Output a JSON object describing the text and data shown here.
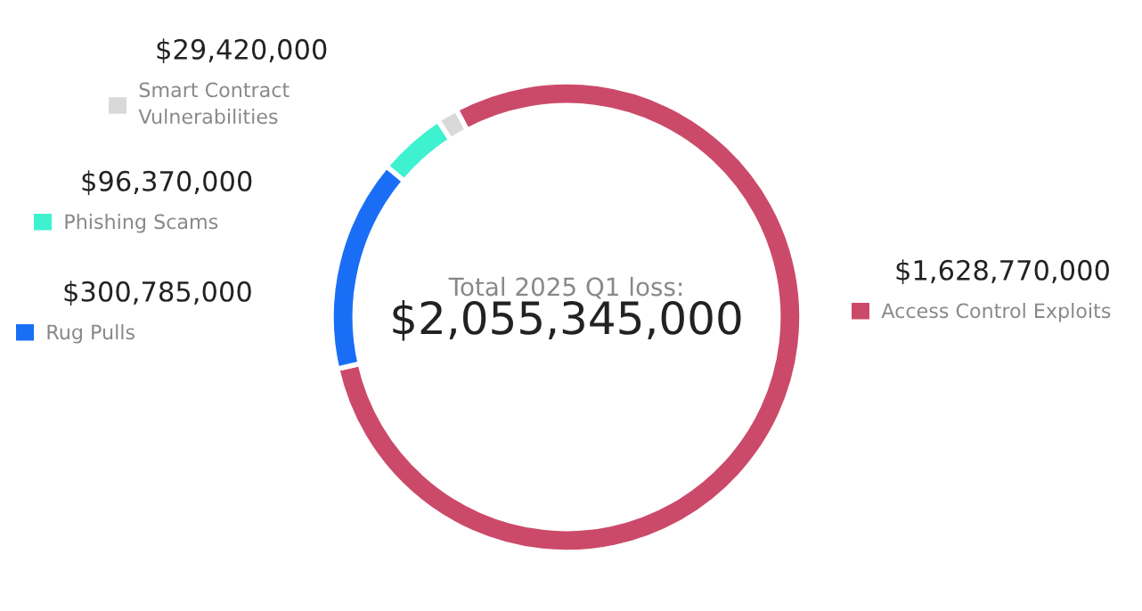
{
  "chart_data": {
    "type": "donut",
    "title": "Total 2025 Q1 loss:",
    "subtitle": "$2,055,345,000",
    "categories": [
      "Access Control Exploits",
      "Rug Pulls",
      "Phishing Scams",
      "Smart Contract\nVulnerabilities"
    ],
    "values": [
      1628770000,
      300785000,
      96370000,
      29420000
    ],
    "value_labels": [
      "$1,628,770,000",
      "$300,785,000",
      "$96,370,000",
      "$29,420,000"
    ],
    "colors": [
      "#cc4a69",
      "#1a6ef5",
      "#3ef2d0",
      "#d9d9d9"
    ],
    "legend": "left"
  }
}
